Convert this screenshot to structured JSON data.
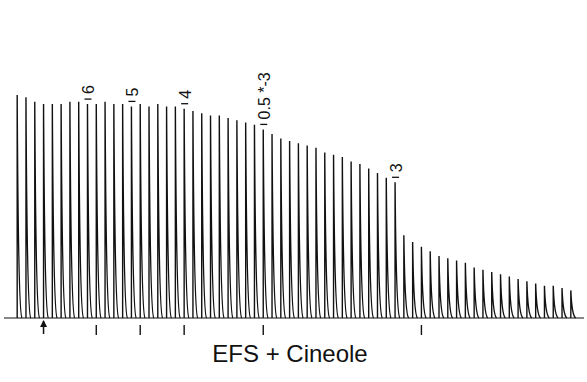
{
  "chart_data": {
    "type": "trace",
    "x_label": "EFS + Cineole",
    "x": [
      0,
      1,
      2,
      3,
      4,
      5,
      6,
      7,
      8,
      9,
      10,
      11,
      12,
      13,
      14,
      15,
      16,
      17,
      18,
      19,
      20,
      21,
      22,
      23,
      24,
      25,
      26,
      27,
      28,
      29,
      30,
      31,
      32,
      33,
      34,
      35,
      36,
      37,
      38,
      39,
      40,
      41,
      42,
      43,
      44,
      45,
      46,
      47,
      48,
      49,
      50,
      51,
      52,
      53,
      54,
      55,
      56,
      57,
      58,
      59,
      60,
      61,
      62,
      63
    ],
    "values": [
      97,
      96,
      94,
      93,
      93,
      93,
      94,
      94,
      93,
      93,
      94,
      93,
      93,
      92,
      93,
      92,
      93,
      92,
      92,
      91,
      90,
      89,
      88,
      88,
      87,
      86,
      85,
      84,
      82,
      80,
      78,
      77,
      76,
      75,
      74,
      72,
      71,
      70,
      68,
      67,
      65,
      63,
      61,
      59,
      36,
      33,
      31,
      29,
      27,
      26,
      25,
      24,
      22,
      21,
      20,
      19,
      18,
      17,
      16,
      15,
      14,
      14,
      13,
      12
    ],
    "xlim": [
      -1.5,
      64.5
    ],
    "ylim": [
      0,
      100
    ],
    "tick_labels": false,
    "color": "#111111",
    "annotations": [
      {
        "text": "6",
        "x": 8
      },
      {
        "text": "5",
        "x": 13
      },
      {
        "text": "4",
        "x": 19
      },
      {
        "text": "0.5 *-3",
        "x": 28
      },
      {
        "text": "3",
        "x": 43
      }
    ],
    "markers": {
      "arrow": 3,
      "ticks": [
        9,
        14,
        19,
        28,
        46
      ]
    }
  }
}
